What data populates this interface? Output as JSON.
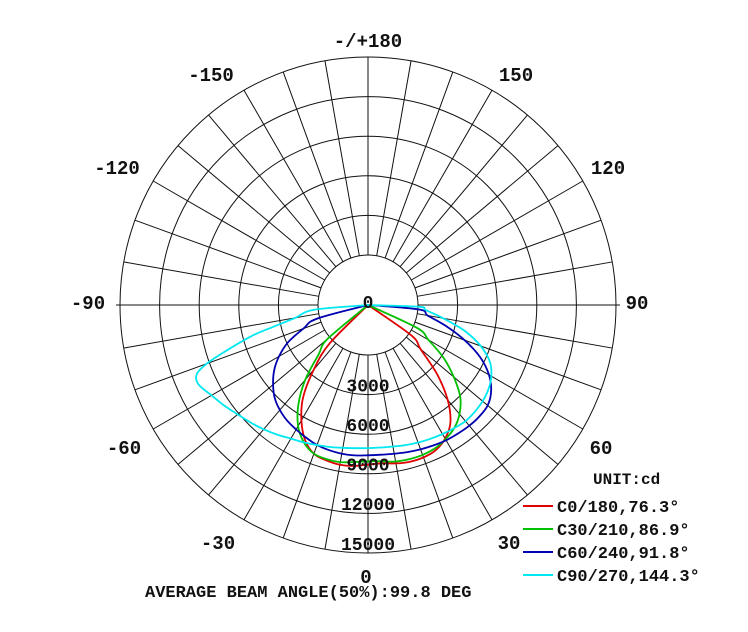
{
  "chart_data": {
    "type": "polar",
    "unit_label": "UNIT:cd",
    "footer": "AVERAGE BEAM ANGLE(50%):99.8 DEG",
    "angle_labels": [
      {
        "deg": 180,
        "text": "-/+180"
      },
      {
        "deg": 150,
        "text": "150"
      },
      {
        "deg": 120,
        "text": "120"
      },
      {
        "deg": 90,
        "text": "90"
      },
      {
        "deg": 60,
        "text": "60"
      },
      {
        "deg": 30,
        "text": "30"
      },
      {
        "deg": 0,
        "text": "0"
      },
      {
        "deg": -30,
        "text": "-30"
      },
      {
        "deg": -60,
        "text": "-60"
      },
      {
        "deg": -90,
        "text": "-90"
      },
      {
        "deg": -120,
        "text": "-120"
      },
      {
        "deg": -150,
        "text": "-150"
      }
    ],
    "ring_labels": [
      "0",
      "3000",
      "6000",
      "9000",
      "12000",
      "15000"
    ],
    "rmax": 15000,
    "rings": [
      3000,
      6000,
      9000,
      12000,
      15000
    ],
    "spoke_step_deg": 10,
    "series": [
      {
        "name": "C0/180,76.3°",
        "color": "#e00000",
        "points": [
          [
            -45,
            300
          ],
          [
            -40,
            2600
          ],
          [
            -35,
            4800
          ],
          [
            -30,
            6300
          ],
          [
            -25,
            7500
          ],
          [
            -20,
            8200
          ],
          [
            -15,
            8400
          ],
          [
            -10,
            8500
          ],
          [
            -5,
            8450
          ],
          [
            0,
            8300
          ],
          [
            5,
            8250
          ],
          [
            10,
            8400
          ],
          [
            15,
            8500
          ],
          [
            20,
            8500
          ],
          [
            25,
            8350
          ],
          [
            30,
            7900
          ],
          [
            35,
            7100
          ],
          [
            40,
            5600
          ],
          [
            45,
            3600
          ],
          [
            50,
            1400
          ],
          [
            55,
            200
          ]
        ]
      },
      {
        "name": "C30/210,86.9°",
        "color": "#00c000",
        "points": [
          [
            -50,
            200
          ],
          [
            -45,
            1500
          ],
          [
            -40,
            3600
          ],
          [
            -35,
            5400
          ],
          [
            -30,
            6800
          ],
          [
            -25,
            7700
          ],
          [
            -20,
            8200
          ],
          [
            -15,
            8300
          ],
          [
            -10,
            8300
          ],
          [
            -5,
            8150
          ],
          [
            0,
            8050
          ],
          [
            5,
            8100
          ],
          [
            10,
            8250
          ],
          [
            15,
            8300
          ],
          [
            20,
            8300
          ],
          [
            25,
            8200
          ],
          [
            30,
            7950
          ],
          [
            35,
            7600
          ],
          [
            40,
            7000
          ],
          [
            45,
            6100
          ],
          [
            50,
            4700
          ],
          [
            55,
            3200
          ],
          [
            60,
            1500
          ],
          [
            65,
            300
          ]
        ]
      },
      {
        "name": "C60/240,91.8°",
        "color": "#0000b0",
        "points": [
          [
            -75,
            200
          ],
          [
            -70,
            1400
          ],
          [
            -65,
            2900
          ],
          [
            -60,
            4000
          ],
          [
            -55,
            4900
          ],
          [
            -50,
            5600
          ],
          [
            -45,
            6200
          ],
          [
            -40,
            6600
          ],
          [
            -35,
            6900
          ],
          [
            -30,
            7100
          ],
          [
            -25,
            7300
          ],
          [
            -20,
            7500
          ],
          [
            -15,
            7600
          ],
          [
            -10,
            7650
          ],
          [
            -5,
            7650
          ],
          [
            0,
            7600
          ],
          [
            5,
            7600
          ],
          [
            10,
            7650
          ],
          [
            15,
            7750
          ],
          [
            20,
            7850
          ],
          [
            25,
            7950
          ],
          [
            30,
            8050
          ],
          [
            35,
            8100
          ],
          [
            40,
            8150
          ],
          [
            45,
            8150
          ],
          [
            50,
            8050
          ],
          [
            55,
            7600
          ],
          [
            60,
            6800
          ],
          [
            65,
            5600
          ],
          [
            70,
            4000
          ],
          [
            75,
            2300
          ],
          [
            80,
            800
          ],
          [
            85,
            100
          ]
        ]
      },
      {
        "name": "C90/270,144.3°",
        "color": "#00e8f0",
        "points": [
          [
            -85,
            300
          ],
          [
            -80,
            1800
          ],
          [
            -77,
            3600
          ],
          [
            -75,
            5400
          ],
          [
            -72,
            7600
          ],
          [
            -70,
            9200
          ],
          [
            -68,
            10200
          ],
          [
            -65,
            10400
          ],
          [
            -60,
            9900
          ],
          [
            -55,
            9500
          ],
          [
            -50,
            9100
          ],
          [
            -45,
            8800
          ],
          [
            -40,
            8500
          ],
          [
            -35,
            8200
          ],
          [
            -30,
            7900
          ],
          [
            -25,
            7700
          ],
          [
            -20,
            7500
          ],
          [
            -15,
            7350
          ],
          [
            -10,
            7200
          ],
          [
            -5,
            7100
          ],
          [
            0,
            7050
          ],
          [
            5,
            7050
          ],
          [
            10,
            7100
          ],
          [
            15,
            7200
          ],
          [
            20,
            7300
          ],
          [
            25,
            7400
          ],
          [
            30,
            7500
          ],
          [
            35,
            7600
          ],
          [
            40,
            7700
          ],
          [
            45,
            7650
          ],
          [
            50,
            7550
          ],
          [
            55,
            7350
          ],
          [
            60,
            7000
          ],
          [
            65,
            6400
          ],
          [
            70,
            5300
          ],
          [
            75,
            3800
          ],
          [
            80,
            2000
          ],
          [
            85,
            600
          ],
          [
            88,
            100
          ]
        ]
      }
    ]
  }
}
